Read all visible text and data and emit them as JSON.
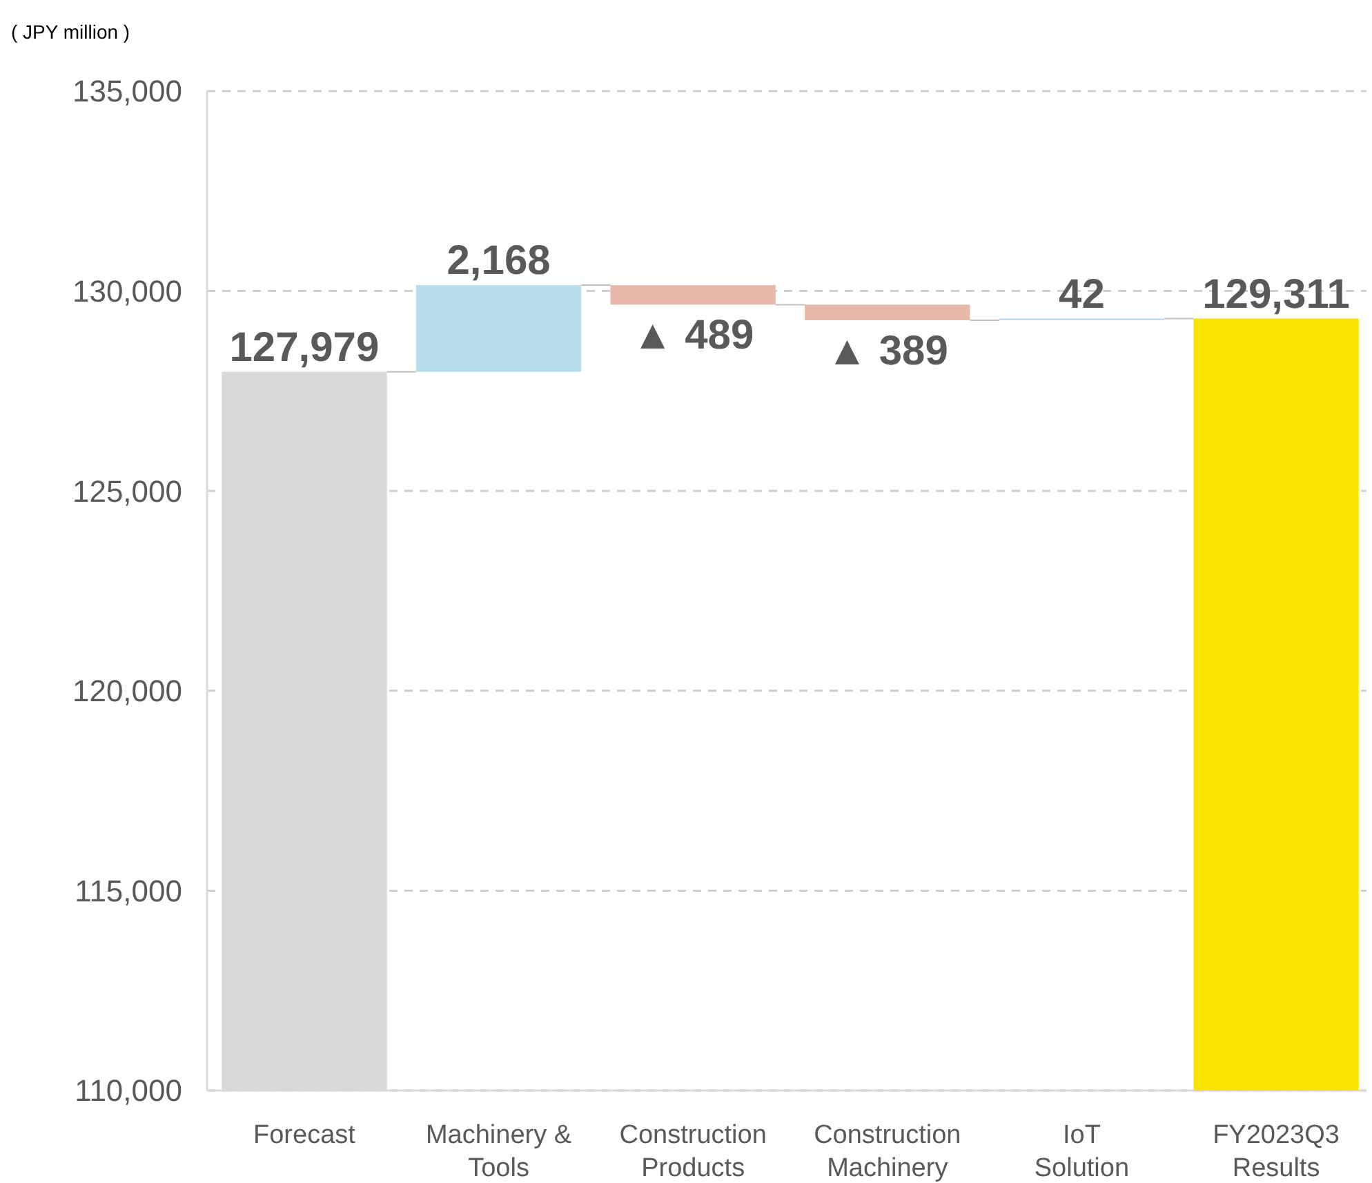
{
  "chart_data": {
    "type": "bar",
    "ylabel": "( JPY million )",
    "categories": [
      "Forecast",
      "Machinery & Tools",
      "Construction Products",
      "Construction Machinery",
      "IoT Solution",
      "FY2023Q3 Results"
    ],
    "values": [
      127979,
      2168,
      -489,
      -389,
      42,
      129311
    ],
    "base": [
      null,
      127979,
      130147,
      129658,
      129269,
      null
    ],
    "colors": [
      "#d9d9d9",
      "#b7dde8",
      "#e6b9a8",
      "#e6b9a8",
      "#b7dde8",
      "#f9e300"
    ],
    "value_labels": [
      "127,979",
      "2,168",
      "▲ 489",
      "▲ 389",
      "42",
      "129,311"
    ],
    "ylim": [
      110000,
      135000
    ],
    "yticks": [
      {
        "value": 110000,
        "label": "110,000"
      },
      {
        "value": 115000,
        "label": "115,000"
      },
      {
        "value": 120000,
        "label": "120,000"
      },
      {
        "value": 125000,
        "label": "125,000"
      },
      {
        "value": 130000,
        "label": "130,000"
      },
      {
        "value": 135000,
        "label": "135,000"
      }
    ],
    "grid": "y"
  }
}
